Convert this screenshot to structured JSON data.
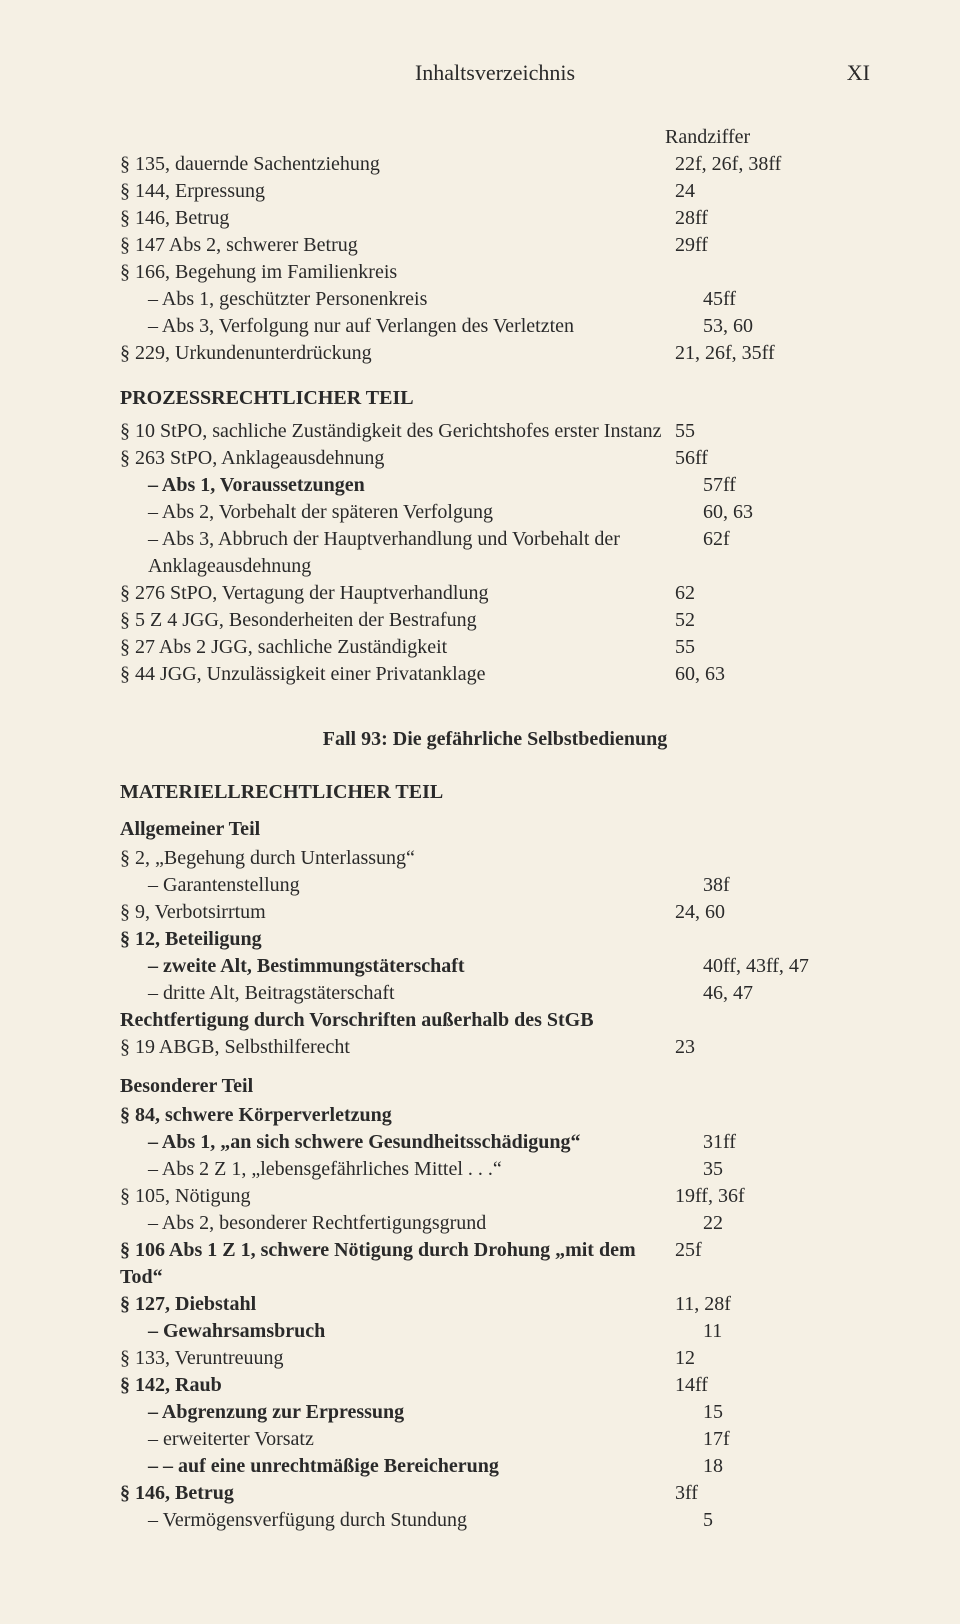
{
  "header": {
    "title": "Inhaltsverzeichnis",
    "pageNumber": "XI"
  },
  "randzifferLabel": "Randziffer",
  "block1": [
    {
      "label": "§ 135, dauernde Sachentziehung",
      "ref": "22f, 26f, 38ff",
      "indent": 0
    },
    {
      "label": "§ 144, Erpressung",
      "ref": "24",
      "indent": 0
    },
    {
      "label": "§ 146, Betrug",
      "ref": "28ff",
      "indent": 0
    },
    {
      "label": "§ 147 Abs 2, schwerer Betrug",
      "ref": "29ff",
      "indent": 0
    },
    {
      "label": "§ 166, Begehung im Familienkreis",
      "ref": "",
      "indent": 0
    },
    {
      "label": "– Abs 1, geschützter Personenkreis",
      "ref": "45ff",
      "indent": 1
    },
    {
      "label": "– Abs 3, Verfolgung nur auf Verlangen des Verletzten",
      "ref": "53, 60",
      "indent": 1
    },
    {
      "label": "§ 229, Urkundenunterdrückung",
      "ref": "21, 26f, 35ff",
      "indent": 0
    }
  ],
  "procHeading": "PROZESSRECHTLICHER TEIL",
  "block2": [
    {
      "label": "§ 10 StPO, sachliche Zuständigkeit des Gerichtshofes erster Instanz",
      "ref": "55",
      "indent": 0
    },
    {
      "label": "§ 263 StPO, Anklageausdehnung",
      "ref": "56ff",
      "indent": 0
    },
    {
      "label": "– Abs 1, Voraussetzungen",
      "ref": "57ff",
      "indent": 1,
      "bold": true
    },
    {
      "label": "– Abs 2, Vorbehalt der späteren Verfolgung",
      "ref": "60, 63",
      "indent": 1
    },
    {
      "label": "– Abs 3, Abbruch der Hauptverhandlung und Vorbehalt der Anklageausdehnung",
      "ref": "62f",
      "indent": 1
    },
    {
      "label": "§ 276 StPO, Vertagung der Hauptverhandlung",
      "ref": "62",
      "indent": 0
    },
    {
      "label": "§ 5 Z 4 JGG, Besonderheiten der Bestrafung",
      "ref": "52",
      "indent": 0
    },
    {
      "label": "§ 27 Abs 2 JGG, sachliche Zuständigkeit",
      "ref": "55",
      "indent": 0
    },
    {
      "label": "§ 44 JGG, Unzulässigkeit einer Privatanklage",
      "ref": "60, 63",
      "indent": 0
    }
  ],
  "fallTitle": "Fall 93: Die gefährliche Selbstbedienung",
  "matHeading": "MATERIELLRECHTLICHER TEIL",
  "allgHeading": "Allgemeiner Teil",
  "block3": [
    {
      "label": "§ 2, „Begehung durch Unterlassung“",
      "ref": "",
      "indent": 0
    },
    {
      "label": "– Garantenstellung",
      "ref": "38f",
      "indent": 1
    },
    {
      "label": "§ 9, Verbotsirrtum",
      "ref": "24, 60",
      "indent": 0
    },
    {
      "label": "§ 12, Beteiligung",
      "ref": "",
      "indent": 0,
      "bold": true
    },
    {
      "label": "– zweite Alt, Bestimmungstäterschaft",
      "ref": "40ff, 43ff, 47",
      "indent": 1,
      "bold": true
    },
    {
      "label": "– dritte Alt, Beitragstäterschaft",
      "ref": "46, 47",
      "indent": 1
    },
    {
      "label": "Rechtfertigung durch Vorschriften außerhalb des StGB",
      "ref": "",
      "indent": 0,
      "bold": true
    },
    {
      "label": "§ 19 ABGB, Selbsthilferecht",
      "ref": "23",
      "indent": 0
    }
  ],
  "besHeading": "Besonderer Teil",
  "block4": [
    {
      "label": "§ 84, schwere Körperverletzung",
      "ref": "",
      "indent": 0,
      "bold": true
    },
    {
      "label": "– Abs 1, „an sich schwere Gesundheitsschädigung“",
      "ref": "31ff",
      "indent": 1,
      "bold": true
    },
    {
      "label": "– Abs 2 Z 1, „lebensgefährliches Mittel . . .“",
      "ref": "35",
      "indent": 1
    },
    {
      "label": "§ 105, Nötigung",
      "ref": "19ff, 36f",
      "indent": 0
    },
    {
      "label": "– Abs 2, besonderer Rechtfertigungsgrund",
      "ref": "22",
      "indent": 1
    },
    {
      "label": "§ 106 Abs 1 Z 1, schwere Nötigung durch Drohung „mit dem Tod“",
      "ref": "25f",
      "indent": 0,
      "bold": true
    },
    {
      "label": "§ 127, Diebstahl",
      "ref": "11, 28f",
      "indent": 0,
      "bold": true
    },
    {
      "label": "– Gewahrsamsbruch",
      "ref": "11",
      "indent": 1,
      "bold": true
    },
    {
      "label": "§ 133, Veruntreuung",
      "ref": "12",
      "indent": 0
    },
    {
      "label": "§ 142, Raub",
      "ref": "14ff",
      "indent": 0,
      "bold": true
    },
    {
      "label": "– Abgrenzung zur Erpressung",
      "ref": "15",
      "indent": 1,
      "bold": true
    },
    {
      "label": "– erweiterter Vorsatz",
      "ref": "17f",
      "indent": 1
    },
    {
      "label": "– – auf eine unrechtmäßige Bereicherung",
      "ref": "18",
      "indent": 1,
      "bold": true
    },
    {
      "label": "§ 146, Betrug",
      "ref": "3ff",
      "indent": 0,
      "bold": true
    },
    {
      "label": "– Vermögensverfügung durch Stundung",
      "ref": "5",
      "indent": 1
    }
  ]
}
